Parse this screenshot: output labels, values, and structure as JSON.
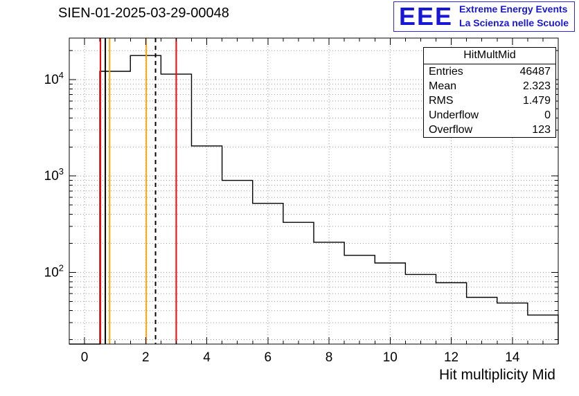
{
  "logo": {
    "eee": "EEE",
    "line1": "Extreme Energy Events",
    "line2": "La Scienza nelle Scuole",
    "color": "#1717d6"
  },
  "stats": {
    "title": "HitMultMid",
    "rows": [
      {
        "label": "Entries",
        "value": "46487"
      },
      {
        "label": "Mean",
        "value": "2.323"
      },
      {
        "label": "RMS",
        "value": "1.479"
      },
      {
        "label": "Underflow",
        "value": "0"
      },
      {
        "label": "Overflow",
        "value": "123"
      }
    ]
  },
  "chart_data": {
    "type": "bar",
    "title": "SIEN-01-2025-03-29-00048",
    "xlabel": "Hit multiplicity Mid",
    "ylabel": "",
    "y_scale": "log",
    "grid": true,
    "xlim": [
      -0.5,
      15.5
    ],
    "ylim": [
      18,
      27000
    ],
    "x_major_step": 2,
    "bin_start": -0.5,
    "bin_width": 1,
    "bin_centers": [
      0,
      1,
      2,
      3,
      4,
      5,
      6,
      7,
      8,
      9,
      10,
      11,
      12,
      13,
      14,
      15
    ],
    "values": [
      0,
      12200,
      17800,
      11400,
      2050,
      900,
      520,
      330,
      205,
      150,
      125,
      95,
      78,
      55,
      48,
      36
    ],
    "marker_lines": [
      {
        "x": 0.52,
        "color": "#ff0000",
        "style": "solid"
      },
      {
        "x": 0.68,
        "color": "#000000",
        "style": "solid"
      },
      {
        "x": 0.82,
        "color": "#ffa500",
        "style": "solid"
      },
      {
        "x": 2.02,
        "color": "#ffa500",
        "style": "solid"
      },
      {
        "x": 2.323,
        "color": "#000000",
        "style": "dashed"
      },
      {
        "x": 3.0,
        "color": "#ff0000",
        "style": "solid"
      }
    ]
  }
}
